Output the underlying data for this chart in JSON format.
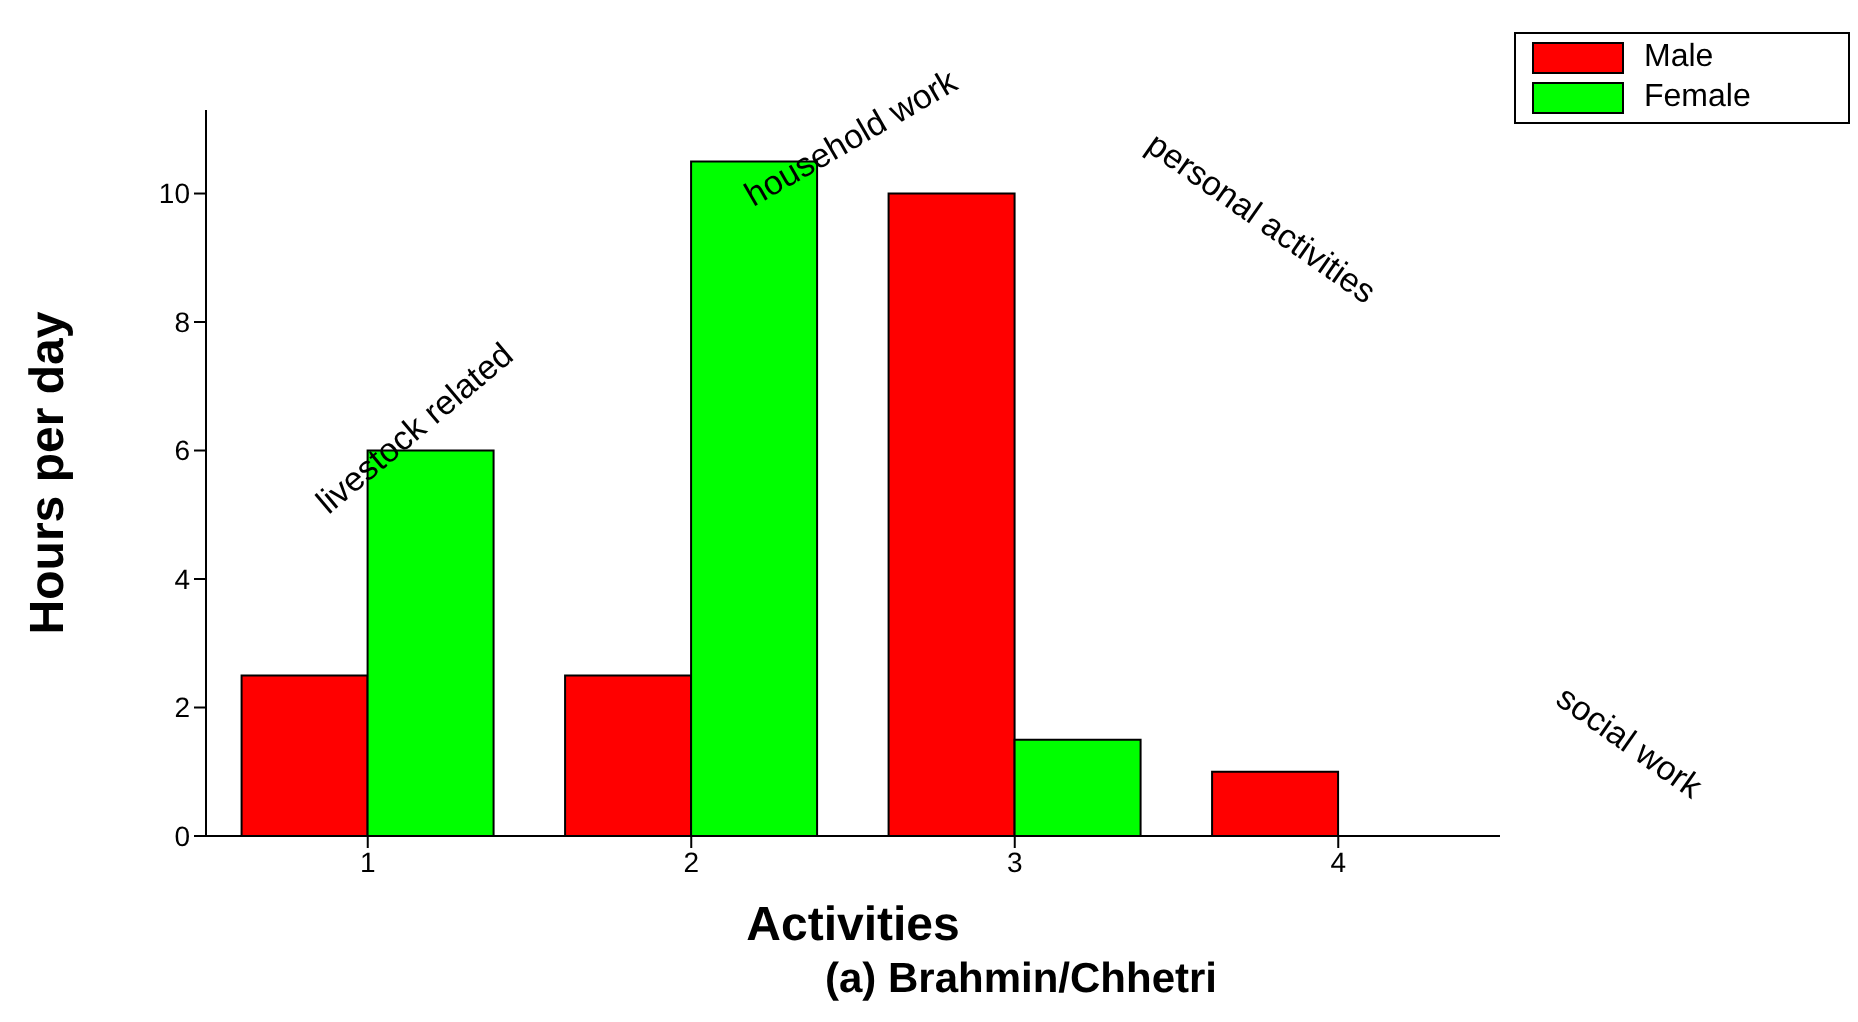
{
  "chart_data": {
    "type": "bar",
    "title": "(a) Brahmin/Chhetri",
    "xlabel": "Activities",
    "ylabel": "Hours per day",
    "categories": [
      "1",
      "2",
      "3",
      "4"
    ],
    "series": [
      {
        "name": "Male",
        "color": "#ff0000",
        "values": [
          2.5,
          2.5,
          10,
          1
        ]
      },
      {
        "name": "Female",
        "color": "#00ff00",
        "values": [
          6,
          10.5,
          1.5,
          0
        ]
      }
    ],
    "ylim": [
      0,
      11.3
    ],
    "yticks": [
      0,
      2,
      4,
      6,
      8,
      10
    ],
    "grid": false,
    "legend": "top right",
    "annotations": [
      "livestock related",
      "household work",
      "personal activities",
      "social work"
    ]
  }
}
